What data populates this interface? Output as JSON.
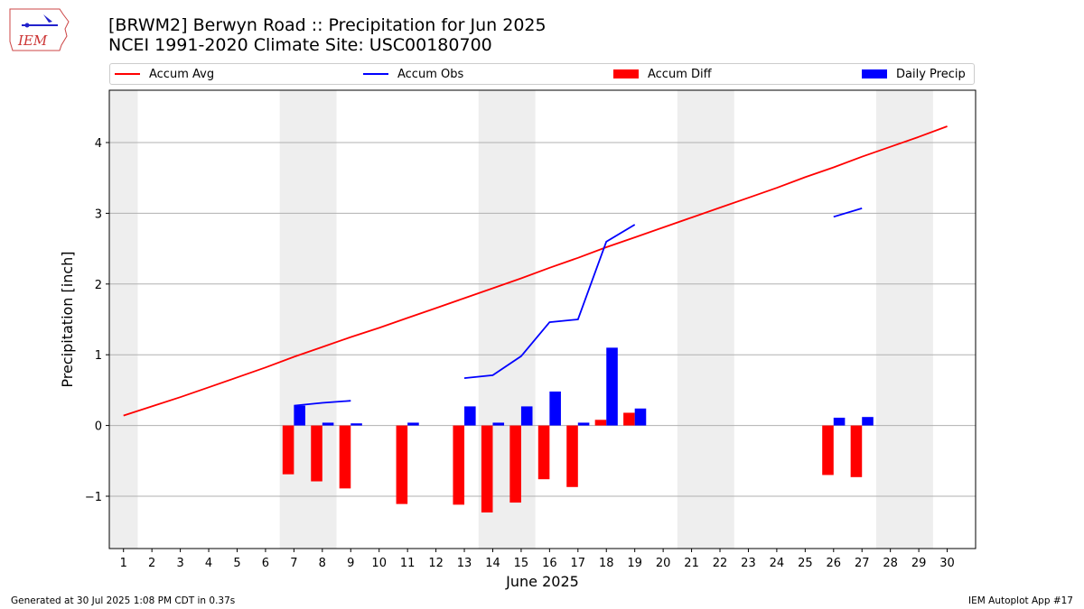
{
  "logo": {
    "text": "IEM"
  },
  "header": {
    "title_line1": "[BRWM2] Berwyn Road :: Precipitation for Jun 2025",
    "title_line2": "NCEI 1991-2020 Climate Site: USC00180700"
  },
  "legend": {
    "placement": "top",
    "items": [
      {
        "label": "Accum Avg",
        "kind": "line",
        "color": "#ff0000"
      },
      {
        "label": "Accum Obs",
        "kind": "line",
        "color": "#0000ff"
      },
      {
        "label": "Accum Diff",
        "kind": "patch",
        "color": "#ff0000"
      },
      {
        "label": "Daily Precip",
        "kind": "patch",
        "color": "#0000ff"
      }
    ]
  },
  "footer": {
    "left": "Generated at 30 Jul 2025 1:08 PM CDT in 0.37s",
    "right": "IEM Autoplot App #17"
  },
  "chart_data": {
    "type": "bar",
    "xlabel": "June 2025",
    "ylabel": "Precipitation [inch]",
    "xlim": [
      0.5,
      31.0
    ],
    "ylim": [
      -1.74,
      4.74
    ],
    "yticks": [
      -1,
      0,
      1,
      2,
      3,
      4
    ],
    "ytick_labels": [
      "−1",
      "0",
      "1",
      "2",
      "3",
      "4"
    ],
    "x": [
      1,
      2,
      3,
      4,
      5,
      6,
      7,
      8,
      9,
      10,
      11,
      12,
      13,
      14,
      15,
      16,
      17,
      18,
      19,
      20,
      21,
      22,
      23,
      24,
      25,
      26,
      27,
      28,
      29,
      30
    ],
    "grid": "horizontal",
    "weekend_bands": [
      [
        0.5,
        1.5
      ],
      [
        6.5,
        8.5
      ],
      [
        13.5,
        15.5
      ],
      [
        20.5,
        22.5
      ],
      [
        27.5,
        29.5
      ]
    ],
    "weekend_band_color": "#eeeeee",
    "series": [
      {
        "name": "Accum Avg",
        "type": "line",
        "color": "#ff0000",
        "values": [
          0.14,
          0.27,
          0.4,
          0.54,
          0.68,
          0.82,
          0.97,
          1.11,
          1.25,
          1.38,
          1.52,
          1.66,
          1.8,
          1.94,
          2.08,
          2.23,
          2.37,
          2.52,
          2.66,
          2.8,
          2.94,
          3.08,
          3.22,
          3.36,
          3.51,
          3.65,
          3.8,
          3.94,
          4.08,
          4.23
        ]
      },
      {
        "name": "Accum Obs",
        "type": "line",
        "color": "#0000ff",
        "values": [
          null,
          null,
          null,
          null,
          null,
          null,
          0.28,
          0.32,
          0.35,
          null,
          null,
          null,
          0.67,
          0.71,
          0.98,
          1.46,
          1.5,
          2.6,
          2.84,
          null,
          null,
          null,
          null,
          null,
          null,
          2.95,
          3.07,
          null,
          null,
          null
        ]
      },
      {
        "name": "Accum Diff",
        "type": "bar",
        "color": "#ff0000",
        "offset": -0.2,
        "width": 0.4,
        "values": [
          null,
          null,
          null,
          null,
          null,
          null,
          -0.69,
          -0.79,
          -0.89,
          null,
          -1.11,
          null,
          -1.12,
          -1.23,
          -1.09,
          -0.76,
          -0.87,
          0.08,
          0.18,
          null,
          null,
          null,
          null,
          null,
          null,
          -0.7,
          -0.73,
          null,
          null,
          null
        ]
      },
      {
        "name": "Daily Precip",
        "type": "bar",
        "color": "#0000ff",
        "offset": 0.2,
        "width": 0.4,
        "values": [
          null,
          null,
          null,
          null,
          null,
          null,
          0.28,
          0.04,
          0.03,
          null,
          0.04,
          null,
          0.27,
          0.04,
          0.27,
          0.48,
          0.04,
          1.1,
          0.24,
          null,
          null,
          null,
          null,
          null,
          null,
          0.11,
          0.12,
          null,
          null,
          null
        ]
      }
    ]
  }
}
